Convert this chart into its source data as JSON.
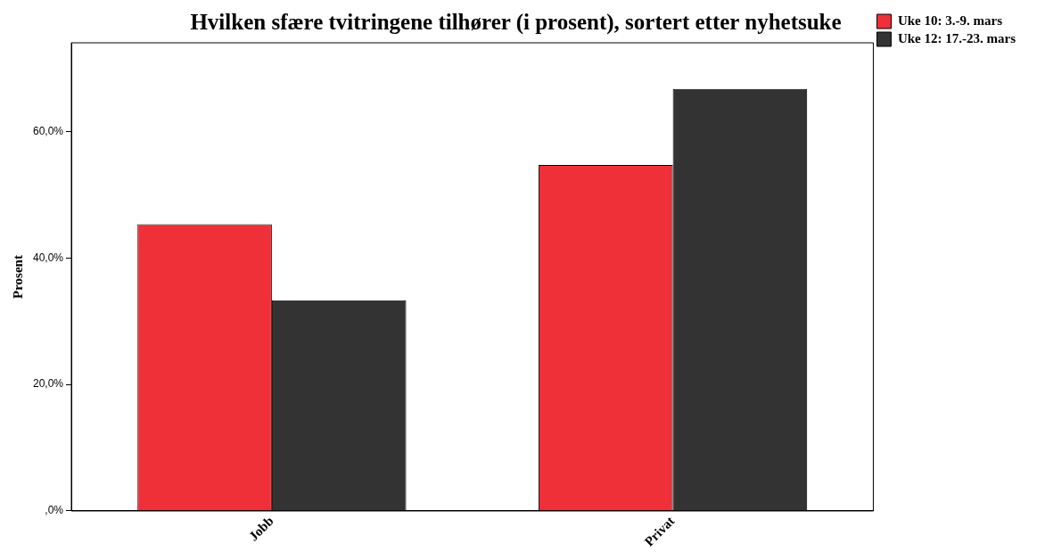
{
  "chart_data": {
    "type": "bar",
    "title": "Hvilken sfære tvitringene tilhører (i prosent), sortert etter nyhetsuke",
    "ylabel": "Prosent",
    "categories": [
      "Jobb",
      "Privat"
    ],
    "series": [
      {
        "name": "Uke 10: 3.-9. mars",
        "color": "#ef3038",
        "values": [
          45.3,
          54.7
        ]
      },
      {
        "name": "Uke 12: 17.-23. mars",
        "color": "#333333",
        "values": [
          33.3,
          66.7
        ]
      }
    ],
    "ylim": [
      0,
      74
    ],
    "yticks": [
      {
        "value": 0,
        "label": ",0%"
      },
      {
        "value": 20,
        "label": "20,0%"
      },
      {
        "value": 40,
        "label": "40,0%"
      },
      {
        "value": 60,
        "label": "60,0%"
      }
    ],
    "grid": false,
    "legend": "top right"
  }
}
